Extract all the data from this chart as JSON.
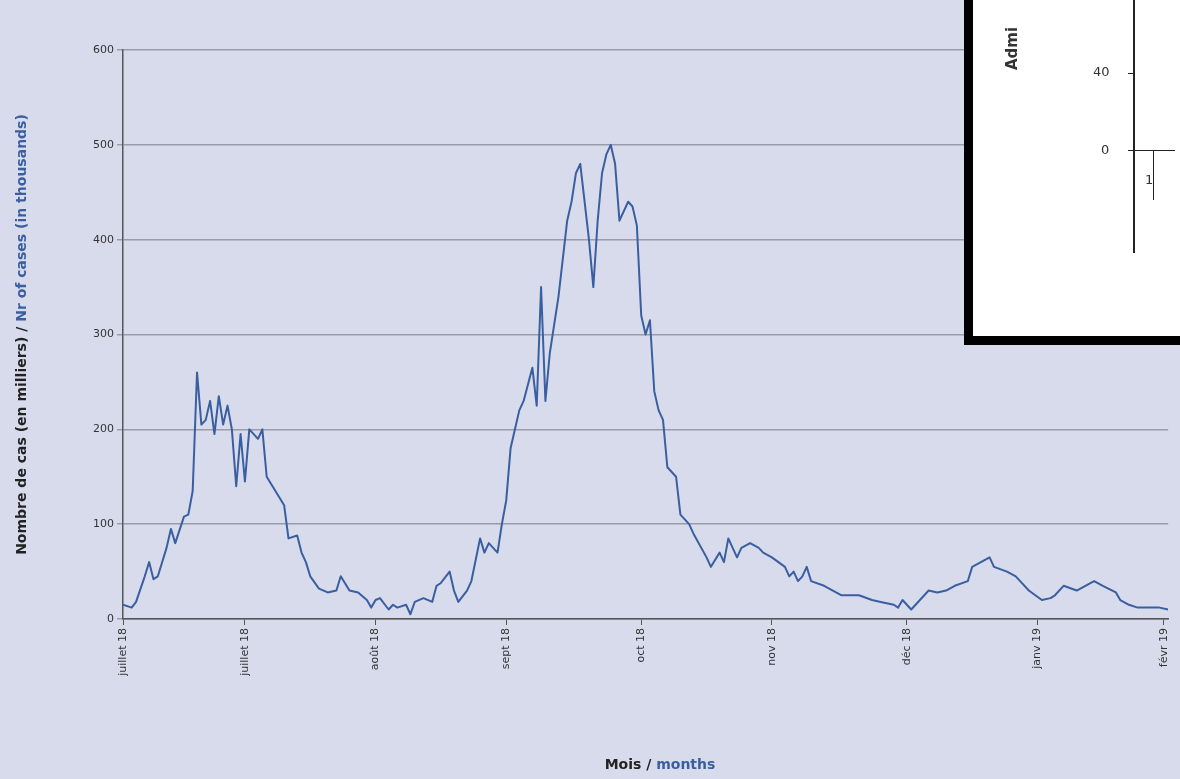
{
  "chart_data": [
    {
      "type": "line",
      "xlabel": "Mois / months",
      "ylabel": "Nombre de cas (en milliers) / Nr of cases (in thousands)",
      "xlim": [
        "2018-07-01",
        "2019-02-26"
      ],
      "xticks": [
        {
          "value": "2018-07-01",
          "label": "juillet 18"
        },
        {
          "value": "2018-07-29",
          "label": "juillet 18"
        },
        {
          "value": "2018-08-28",
          "label": "août 18"
        },
        {
          "value": "2018-09-27",
          "label": "sept 18"
        },
        {
          "value": "2018-10-28",
          "label": "oct 18"
        },
        {
          "value": "2018-11-27",
          "label": "nov 18"
        },
        {
          "value": "2018-12-28",
          "label": "déc 18"
        },
        {
          "value": "2019-01-27",
          "label": "janv 19"
        },
        {
          "value": "2019-02-25",
          "label": "févr 19"
        }
      ],
      "ylim": [
        0,
        600
      ],
      "yticks": [
        0,
        100,
        200,
        300,
        400,
        500,
        600
      ],
      "grid": "y",
      "marker": "none",
      "line_style": "solid",
      "series": [
        {
          "color": "#3a5fa0",
          "x": [
            "2018-07-01",
            "2018-07-03",
            "2018-07-04",
            "2018-07-06",
            "2018-07-07",
            "2018-07-08",
            "2018-07-09",
            "2018-07-11",
            "2018-07-12",
            "2018-07-13",
            "2018-07-15",
            "2018-07-16",
            "2018-07-17",
            "2018-07-18",
            "2018-07-19",
            "2018-07-20",
            "2018-07-21",
            "2018-07-22",
            "2018-07-23",
            "2018-07-24",
            "2018-07-25",
            "2018-07-26",
            "2018-07-27",
            "2018-07-28",
            "2018-07-29",
            "2018-07-30",
            "2018-08-01",
            "2018-08-02",
            "2018-08-03",
            "2018-08-05",
            "2018-08-07",
            "2018-08-08",
            "2018-08-10",
            "2018-08-11",
            "2018-08-12",
            "2018-08-13",
            "2018-08-15",
            "2018-08-17",
            "2018-08-19",
            "2018-08-20",
            "2018-08-22",
            "2018-08-24",
            "2018-08-26",
            "2018-08-27",
            "2018-08-28",
            "2018-08-29",
            "2018-08-31",
            "2018-09-01",
            "2018-09-02",
            "2018-09-04",
            "2018-09-05",
            "2018-09-06",
            "2018-09-08",
            "2018-09-10",
            "2018-09-11",
            "2018-09-12",
            "2018-09-14",
            "2018-09-15",
            "2018-09-16",
            "2018-09-18",
            "2018-09-19",
            "2018-09-21",
            "2018-09-22",
            "2018-09-23",
            "2018-09-25",
            "2018-09-26",
            "2018-09-27",
            "2018-09-28",
            "2018-09-29",
            "2018-09-30",
            "2018-10-01",
            "2018-10-03",
            "2018-10-04",
            "2018-10-05",
            "2018-10-06",
            "2018-10-07",
            "2018-10-09",
            "2018-10-11",
            "2018-10-12",
            "2018-10-13",
            "2018-10-14",
            "2018-10-16",
            "2018-10-17",
            "2018-10-18",
            "2018-10-19",
            "2018-10-20",
            "2018-10-21",
            "2018-10-22",
            "2018-10-23",
            "2018-10-25",
            "2018-10-26",
            "2018-10-27",
            "2018-10-28",
            "2018-10-29",
            "2018-10-30",
            "2018-10-31",
            "2018-11-01",
            "2018-11-02",
            "2018-11-03",
            "2018-11-05",
            "2018-11-06",
            "2018-11-08",
            "2018-11-09",
            "2018-11-12",
            "2018-11-13",
            "2018-11-15",
            "2018-11-16",
            "2018-11-17",
            "2018-11-19",
            "2018-11-20",
            "2018-11-22",
            "2018-11-24",
            "2018-11-25",
            "2018-11-27",
            "2018-11-30",
            "2018-12-01",
            "2018-12-02",
            "2018-12-03",
            "2018-12-04",
            "2018-12-05",
            "2018-12-06",
            "2018-12-09",
            "2018-12-11",
            "2018-12-13",
            "2018-12-17",
            "2018-12-20",
            "2018-12-22",
            "2018-12-25",
            "2018-12-26",
            "2018-12-27",
            "2018-12-29",
            "2018-12-31",
            "2019-01-02",
            "2019-01-04",
            "2019-01-06",
            "2019-01-08",
            "2019-01-11",
            "2019-01-12",
            "2019-01-14",
            "2019-01-16",
            "2019-01-17",
            "2019-01-20",
            "2019-01-22",
            "2019-01-25",
            "2019-01-28",
            "2019-01-30",
            "2019-01-31",
            "2019-02-02",
            "2019-02-05",
            "2019-02-07",
            "2019-02-09",
            "2019-02-11",
            "2019-02-14",
            "2019-02-15",
            "2019-02-17",
            "2019-02-19",
            "2019-02-22",
            "2019-02-24",
            "2019-02-26"
          ],
          "values": [
            15,
            12,
            18,
            45,
            60,
            42,
            45,
            75,
            95,
            80,
            108,
            110,
            135,
            260,
            205,
            210,
            230,
            195,
            235,
            205,
            225,
            200,
            140,
            195,
            145,
            200,
            190,
            200,
            150,
            135,
            120,
            85,
            88,
            70,
            60,
            45,
            32,
            28,
            30,
            45,
            30,
            28,
            20,
            12,
            20,
            22,
            10,
            15,
            12,
            15,
            5,
            18,
            22,
            18,
            35,
            38,
            50,
            30,
            18,
            30,
            40,
            85,
            70,
            80,
            70,
            100,
            125,
            180,
            200,
            220,
            230,
            265,
            225,
            350,
            230,
            280,
            340,
            420,
            440,
            470,
            480,
            400,
            350,
            420,
            470,
            490,
            500,
            480,
            420,
            440,
            435,
            415,
            320,
            300,
            315,
            240,
            220,
            210,
            160,
            150,
            110,
            100,
            90,
            65,
            55,
            70,
            60,
            85,
            65,
            75,
            80,
            75,
            70,
            65,
            55,
            45,
            50,
            40,
            45,
            55,
            40,
            35,
            30,
            25,
            25,
            20,
            18,
            15,
            12,
            20,
            10,
            20,
            30,
            28,
            30,
            35,
            40,
            55,
            60,
            65,
            55,
            50,
            45,
            30,
            20,
            22,
            25,
            35,
            30,
            35,
            40,
            35,
            28,
            20,
            15,
            12,
            12,
            12,
            10
          ]
        }
      ]
    },
    {
      "type": "other",
      "annotations": [
        "Admi",
        "40",
        "0",
        "1"
      ]
    }
  ]
}
